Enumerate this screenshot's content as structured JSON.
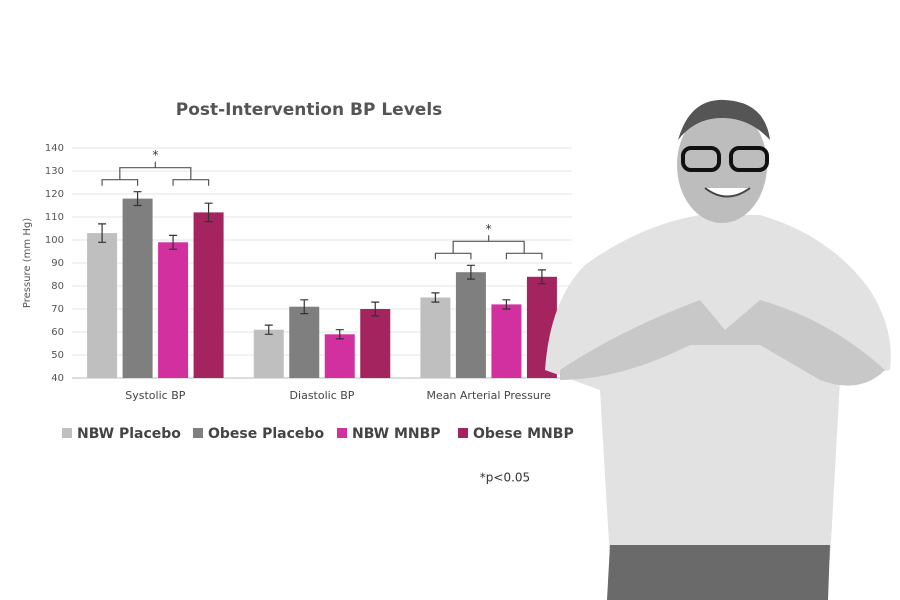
{
  "chart_data": {
    "type": "bar",
    "title": "Post-Intervention BP Levels",
    "y_label": "Pressure (mm Hg)",
    "categories": [
      "Systolic BP",
      "Diastolic BP",
      "Mean Arterial Pressure"
    ],
    "series": [
      {
        "name": "NBW Placebo",
        "color": "#bfbfbf",
        "values": [
          103,
          61,
          75
        ],
        "errors": [
          4,
          2,
          2
        ]
      },
      {
        "name": "Obese Placebo",
        "color": "#7f7f7f",
        "values": [
          118,
          71,
          86
        ],
        "errors": [
          3,
          3,
          3
        ]
      },
      {
        "name": "NBW MNBP",
        "color": "#d22f9f",
        "values": [
          99,
          59,
          72
        ],
        "errors": [
          3,
          2,
          2
        ]
      },
      {
        "name": "Obese MNBP",
        "color": "#a3245f",
        "values": [
          112,
          70,
          84
        ],
        "errors": [
          4,
          3,
          3
        ]
      }
    ],
    "significance_marks": [
      "*",
      null,
      "*"
    ],
    "footnote": "*p<0.05",
    "ylim": [
      40,
      140
    ],
    "yticks": [
      40,
      50,
      60,
      70,
      80,
      90,
      100,
      110,
      120,
      130,
      140
    ],
    "grid": true,
    "legend": "bottom"
  }
}
